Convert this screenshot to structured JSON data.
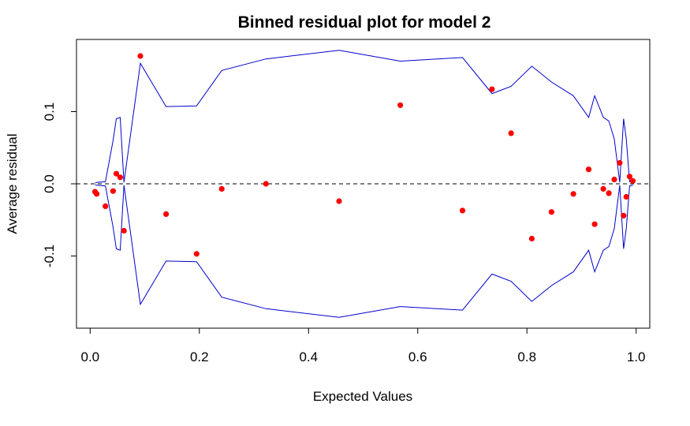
{
  "chart_data": {
    "type": "scatter",
    "title": "Binned residual plot for model 2",
    "xlabel": "Expected Values",
    "ylabel": "Average residual",
    "xlim": [
      -0.025,
      1.025
    ],
    "ylim": [
      -0.2,
      0.2
    ],
    "xticks": [
      0.0,
      0.2,
      0.4,
      0.6,
      0.8,
      1.0
    ],
    "xtick_labels": [
      "0.0",
      "0.2",
      "0.4",
      "0.6",
      "0.8",
      "1.0"
    ],
    "yticks": [
      -0.1,
      0.0,
      0.1
    ],
    "ytick_labels": [
      "-0.1",
      "0.0",
      "0.1"
    ],
    "grid": false,
    "reference_line": {
      "y": 0,
      "style": "dashed",
      "color": "#000000"
    },
    "points": {
      "color": "#ff0000",
      "x": [
        0.009,
        0.012,
        0.028,
        0.042,
        0.048,
        0.055,
        0.062,
        0.092,
        0.139,
        0.195,
        0.241,
        0.322,
        0.456,
        0.568,
        0.682,
        0.736,
        0.771,
        0.809,
        0.845,
        0.885,
        0.913,
        0.924,
        0.94,
        0.95,
        0.96,
        0.97,
        0.977,
        0.982,
        0.988,
        0.994
      ],
      "y": [
        -0.011,
        -0.014,
        -0.031,
        -0.01,
        0.014,
        0.009,
        -0.065,
        0.177,
        -0.042,
        -0.097,
        -0.007,
        0.0,
        -0.024,
        0.109,
        -0.037,
        0.131,
        0.07,
        -0.076,
        -0.039,
        -0.014,
        0.02,
        -0.056,
        -0.007,
        -0.013,
        0.006,
        0.029,
        -0.044,
        -0.018,
        0.01,
        0.004
      ]
    },
    "bounds": {
      "color": "#0000cd",
      "x": [
        0.009,
        0.012,
        0.028,
        0.042,
        0.048,
        0.055,
        0.062,
        0.092,
        0.139,
        0.195,
        0.241,
        0.322,
        0.456,
        0.568,
        0.682,
        0.736,
        0.771,
        0.809,
        0.845,
        0.885,
        0.913,
        0.924,
        0.94,
        0.95,
        0.96,
        0.97,
        0.977,
        0.982,
        0.988,
        0.994
      ],
      "upper": [
        0.001,
        0.002,
        0.003,
        0.06,
        0.09,
        0.092,
        0.002,
        0.167,
        0.107,
        0.108,
        0.157,
        0.173,
        0.185,
        0.17,
        0.175,
        0.125,
        0.135,
        0.163,
        0.141,
        0.122,
        0.092,
        0.122,
        0.092,
        0.087,
        0.062,
        0.002,
        0.09,
        0.062,
        0.003,
        0.002
      ]
    }
  }
}
